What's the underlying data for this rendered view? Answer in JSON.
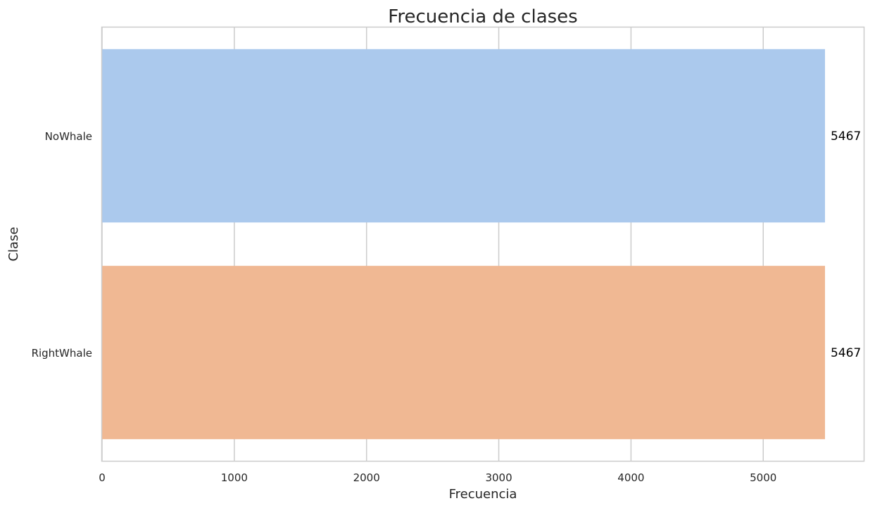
{
  "chart_data": {
    "type": "bar",
    "orientation": "horizontal",
    "title": "Frecuencia de clases",
    "xlabel": "Frecuencia",
    "ylabel": "Clase",
    "categories": [
      "NoWhale",
      "RightWhale"
    ],
    "values": [
      5467,
      5467
    ],
    "data_labels": [
      "5467",
      "5467"
    ],
    "bar_colors": [
      "#abc9ed",
      "#f0b893"
    ],
    "xlim": [
      0,
      5760
    ],
    "xticks": [
      0,
      1000,
      2000,
      3000,
      4000,
      5000
    ],
    "grid": "x-only",
    "legend": "none"
  }
}
